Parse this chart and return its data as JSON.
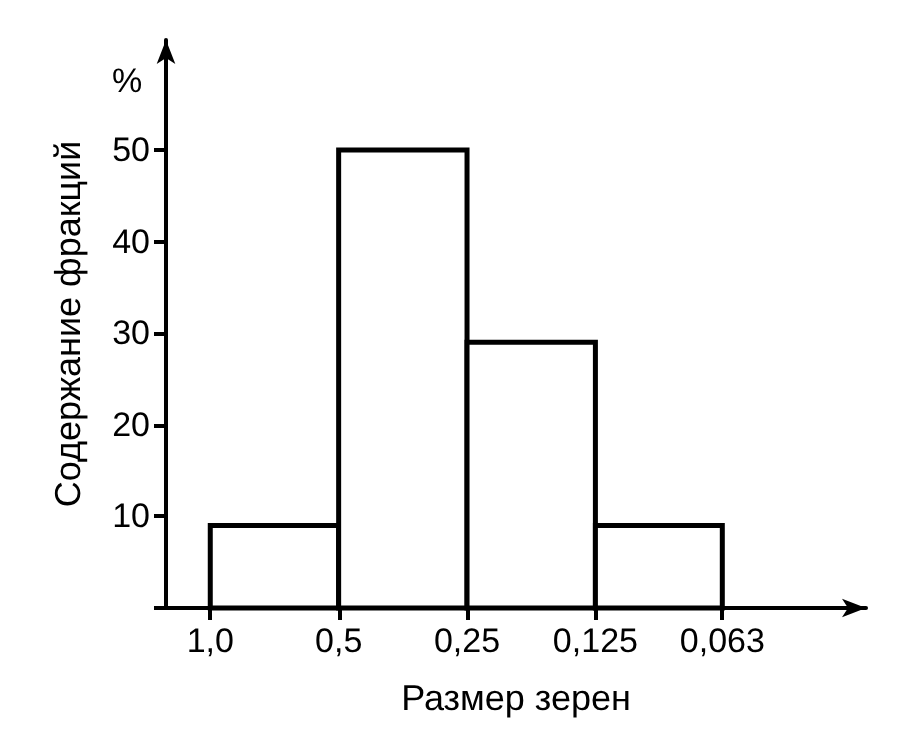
{
  "chart_data": {
    "type": "histogram",
    "xlabel": "Размер зерен",
    "ylabel": "Содержание фракций",
    "annotations": [
      "%"
    ],
    "bins": [
      1.0,
      0.5,
      0.25,
      0.125,
      0.063
    ],
    "values": [
      9,
      50,
      29,
      9
    ],
    "color": "#000000",
    "log": "x",
    "xlim": [
      1.27,
      0.029
    ],
    "xticks": [
      {
        "value": 1.0,
        "label": "1,0"
      },
      {
        "value": 0.5,
        "label": "0,5"
      },
      {
        "value": 0.25,
        "label": "0,25"
      },
      {
        "value": 0.125,
        "label": "0,125"
      },
      {
        "value": 0.063,
        "label": "0,063"
      }
    ],
    "ylim": [
      0,
      62
    ],
    "yticks": [
      {
        "value": 0,
        "label": null
      },
      10,
      20,
      30,
      40,
      50
    ],
    "grid": false
  }
}
